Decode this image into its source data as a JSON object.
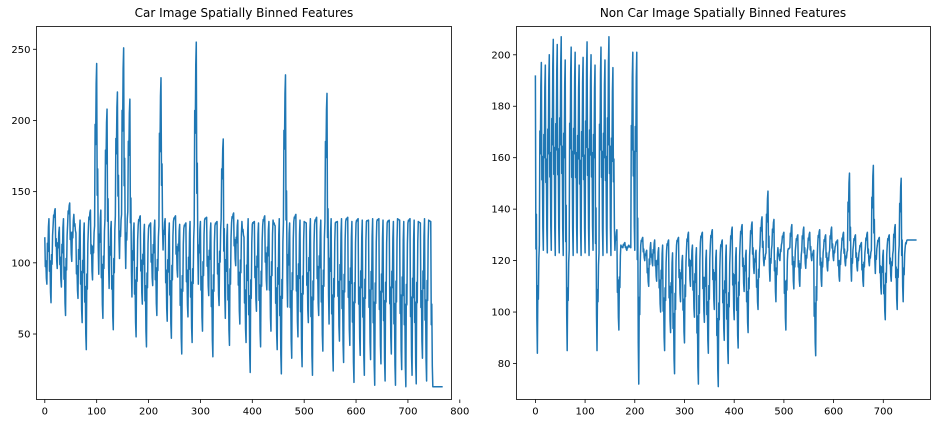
{
  "chart_data": [
    {
      "type": "line",
      "title": "Car Image Spatially Binned Features",
      "xlabel": "",
      "ylabel": "",
      "xlim": [
        -16,
        784
      ],
      "ylim": [
        4,
        266
      ],
      "xticks": [
        0,
        100,
        200,
        300,
        400,
        500,
        600,
        700,
        800
      ],
      "yticks": [
        50,
        100,
        150,
        200,
        250
      ],
      "grid": false,
      "color": "#1f77b4",
      "n_points": 768,
      "series": [
        {
          "values_sampled_every_4th_feature": [
            118,
            85,
            131,
            72,
            126,
            138,
            96,
            125,
            83,
            131,
            63,
            127,
            142,
            101,
            134,
            121,
            75,
            130,
            58,
            128,
            39,
            124,
            137,
            88,
            126,
            240,
            92,
            137,
            61,
            131,
            208,
            82,
            129,
            53,
            133,
            220,
            103,
            134,
            251,
            96,
            136,
            215,
            76,
            128,
            48,
            126,
            133,
            71,
            127,
            41,
            124,
            128,
            84,
            130,
            63,
            126,
            230,
            109,
            131,
            59,
            128,
            47,
            129,
            133,
            90,
            127,
            36,
            124,
            128,
            62,
            129,
            44,
            127,
            255,
            85,
            129,
            52,
            130,
            132,
            77,
            128,
            34,
            126,
            129,
            70,
            131,
            187,
            61,
            127,
            42,
            128,
            135,
            98,
            130,
            57,
            129,
            118,
            44,
            131,
            23,
            127,
            129,
            66,
            128,
            41,
            126,
            133,
            81,
            129,
            52,
            130,
            126,
            39,
            131,
            22,
            128,
            232,
            69,
            128,
            33,
            129,
            134,
            48,
            130,
            27,
            129,
            128,
            58,
            131,
            21,
            127,
            132,
            63,
            130,
            38,
            129,
            219,
            57,
            131,
            24,
            128,
            129,
            45,
            131,
            30,
            129,
            132,
            42,
            129,
            16,
            128,
            131,
            35,
            130,
            21,
            129,
            130,
            32,
            131,
            14,
            129,
            131,
            29,
            130,
            17,
            128,
            130,
            36,
            129,
            14,
            131,
            130,
            25,
            129,
            13,
            128,
            131,
            21,
            130,
            15,
            129,
            128,
            33,
            131,
            17,
            130,
            129,
            13
          ]
        }
      ]
    },
    {
      "type": "line",
      "title": "Non Car Image Spatially Binned Features",
      "xlabel": "",
      "ylabel": "",
      "xlim": [
        -38,
        795
      ],
      "ylim": [
        66,
        211
      ],
      "xticks": [
        0,
        100,
        200,
        300,
        400,
        500,
        600,
        700
      ],
      "yticks": [
        80,
        100,
        120,
        140,
        160,
        180,
        200
      ],
      "grid": false,
      "color": "#1f77b4",
      "n_points": 768,
      "series": [
        {
          "values_sampled_every_4th_feature": [
            192,
            84,
            126,
            197,
            124,
            196,
            123,
            200,
            124,
            206,
            122,
            204,
            123,
            207,
            122,
            198,
            85,
            124,
            203,
            122,
            201,
            123,
            196,
            122,
            199,
            123,
            205,
            122,
            200,
            124,
            196,
            85,
            123,
            203,
            122,
            198,
            123,
            207,
            122,
            195,
            124,
            132,
            93,
            126,
            125,
            127,
            124,
            126,
            125,
            201,
            124,
            201,
            72,
            126,
            129,
            120,
            124,
            110,
            127,
            118,
            128,
            112,
            125,
            100,
            126,
            85,
            124,
            128,
            92,
            123,
            76,
            126,
            129,
            104,
            122,
            88,
            124,
            131,
            110,
            126,
            98,
            125,
            72,
            127,
            131,
            96,
            124,
            84,
            126,
            132,
            101,
            124,
            71,
            123,
            128,
            89,
            126,
            80,
            124,
            133,
            97,
            125,
            86,
            127,
            134,
            108,
            124,
            92,
            126,
            135,
            115,
            124,
            101,
            126,
            137,
            118,
            123,
            147,
            112,
            126,
            136,
            104,
            125,
            120,
            127,
            131,
            93,
            124,
            125,
            134,
            109,
            126,
            130,
            110,
            124,
            133,
            117,
            125,
            131,
            120,
            124,
            83,
            126,
            132,
            110,
            125,
            130,
            116,
            124,
            133,
            120,
            126,
            128,
            112,
            125,
            131,
            118,
            124,
            154,
            112,
            126,
            130,
            116,
            124,
            127,
            110,
            125,
            131,
            118,
            124,
            157,
            115,
            126,
            129,
            107,
            124,
            97,
            126,
            130,
            112,
            124,
            134,
            101,
            126,
            152,
            104,
            125,
            128
          ]
        }
      ]
    }
  ]
}
